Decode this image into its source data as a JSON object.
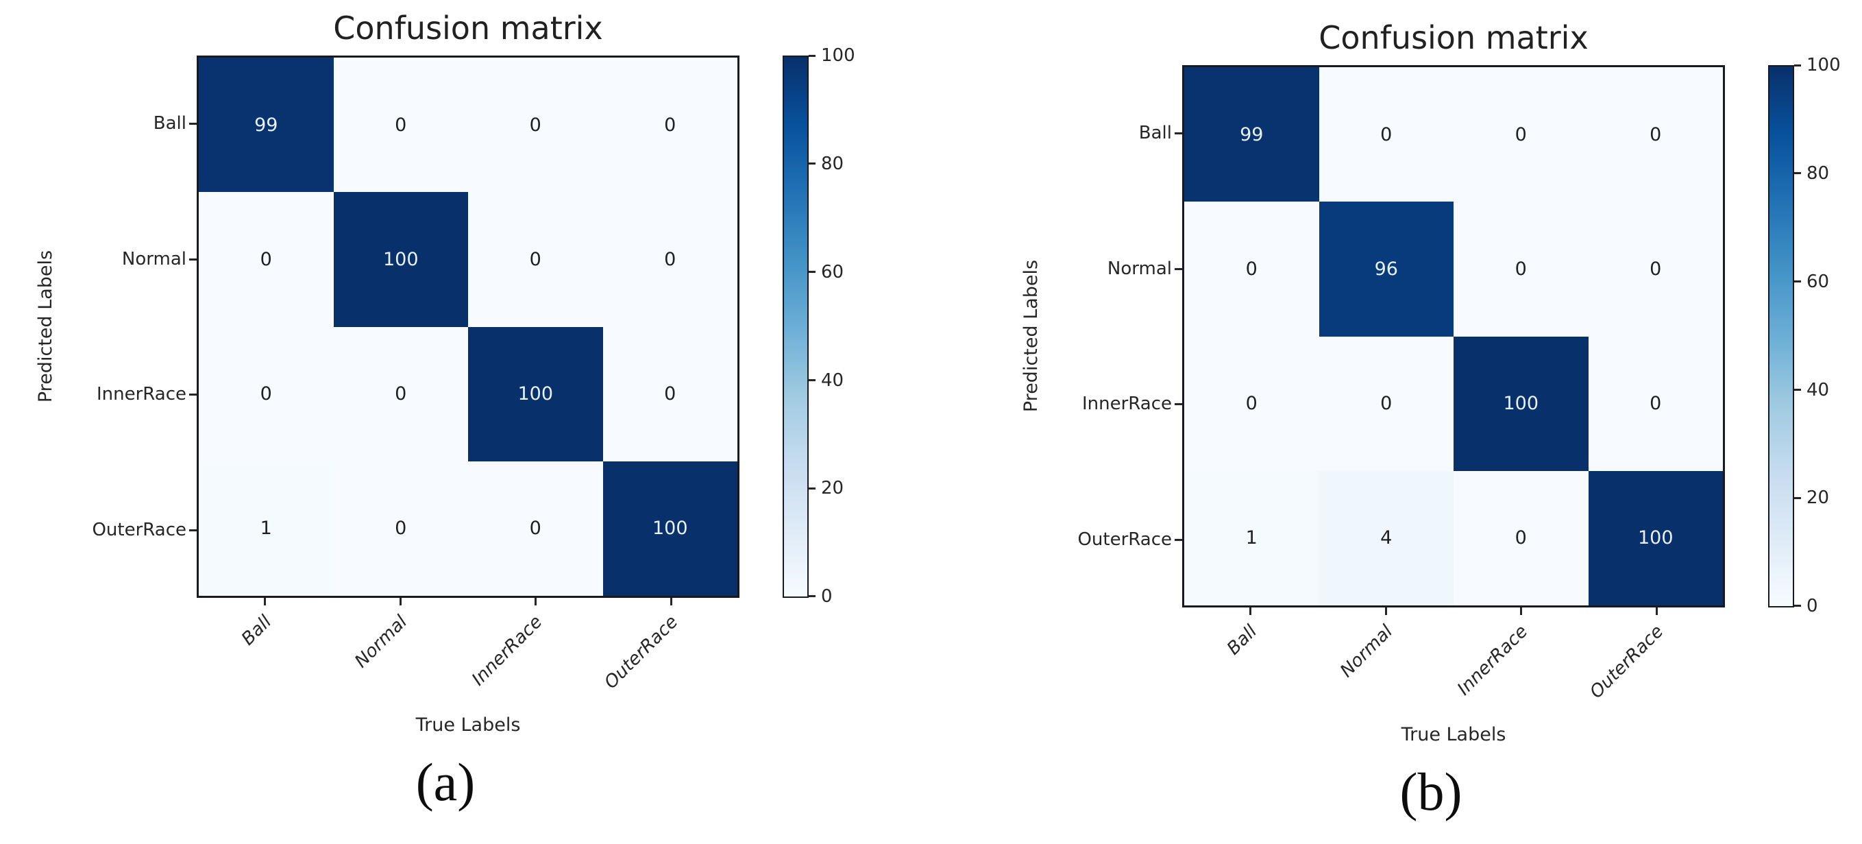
{
  "chart_data": [
    {
      "type": "heatmap",
      "title": "Confusion matrix",
      "xlabel": "True Labels",
      "ylabel": "Predicted Labels",
      "x_categories": [
        "Ball",
        "Normal",
        "InnerRace",
        "OuterRace"
      ],
      "y_categories": [
        "Ball",
        "Normal",
        "InnerRace",
        "OuterRace"
      ],
      "values": [
        [
          99,
          0,
          0,
          0
        ],
        [
          0,
          100,
          0,
          0
        ],
        [
          0,
          0,
          100,
          0
        ],
        [
          1,
          0,
          0,
          100
        ]
      ],
      "colormap": "Blues",
      "vmin": 0,
      "vmax": 100,
      "colorbar_ticks": [
        "100",
        "80",
        "60",
        "40",
        "20",
        "0"
      ],
      "legend_position": "right-colorbar",
      "grid": false,
      "caption": "(a)"
    },
    {
      "type": "heatmap",
      "title": "Confusion matrix",
      "xlabel": "True Labels",
      "ylabel": "Predicted Labels",
      "x_categories": [
        "Ball",
        "Normal",
        "InnerRace",
        "OuterRace"
      ],
      "y_categories": [
        "Ball",
        "Normal",
        "InnerRace",
        "OuterRace"
      ],
      "values": [
        [
          99,
          0,
          0,
          0
        ],
        [
          0,
          96,
          0,
          0
        ],
        [
          0,
          0,
          100,
          0
        ],
        [
          1,
          4,
          0,
          100
        ]
      ],
      "colormap": "Blues",
      "vmin": 0,
      "vmax": 100,
      "colorbar_ticks": [
        "100",
        "80",
        "60",
        "40",
        "20",
        "0"
      ],
      "legend_position": "right-colorbar",
      "grid": false,
      "caption": "(b)"
    }
  ],
  "colors": {
    "cmap_high": "#08306b",
    "cmap_low": "#f7fbff",
    "cell_text_light": "#e8f0f8",
    "cell_text_dark": "#1f1f1f",
    "axis_text": "#262626"
  }
}
